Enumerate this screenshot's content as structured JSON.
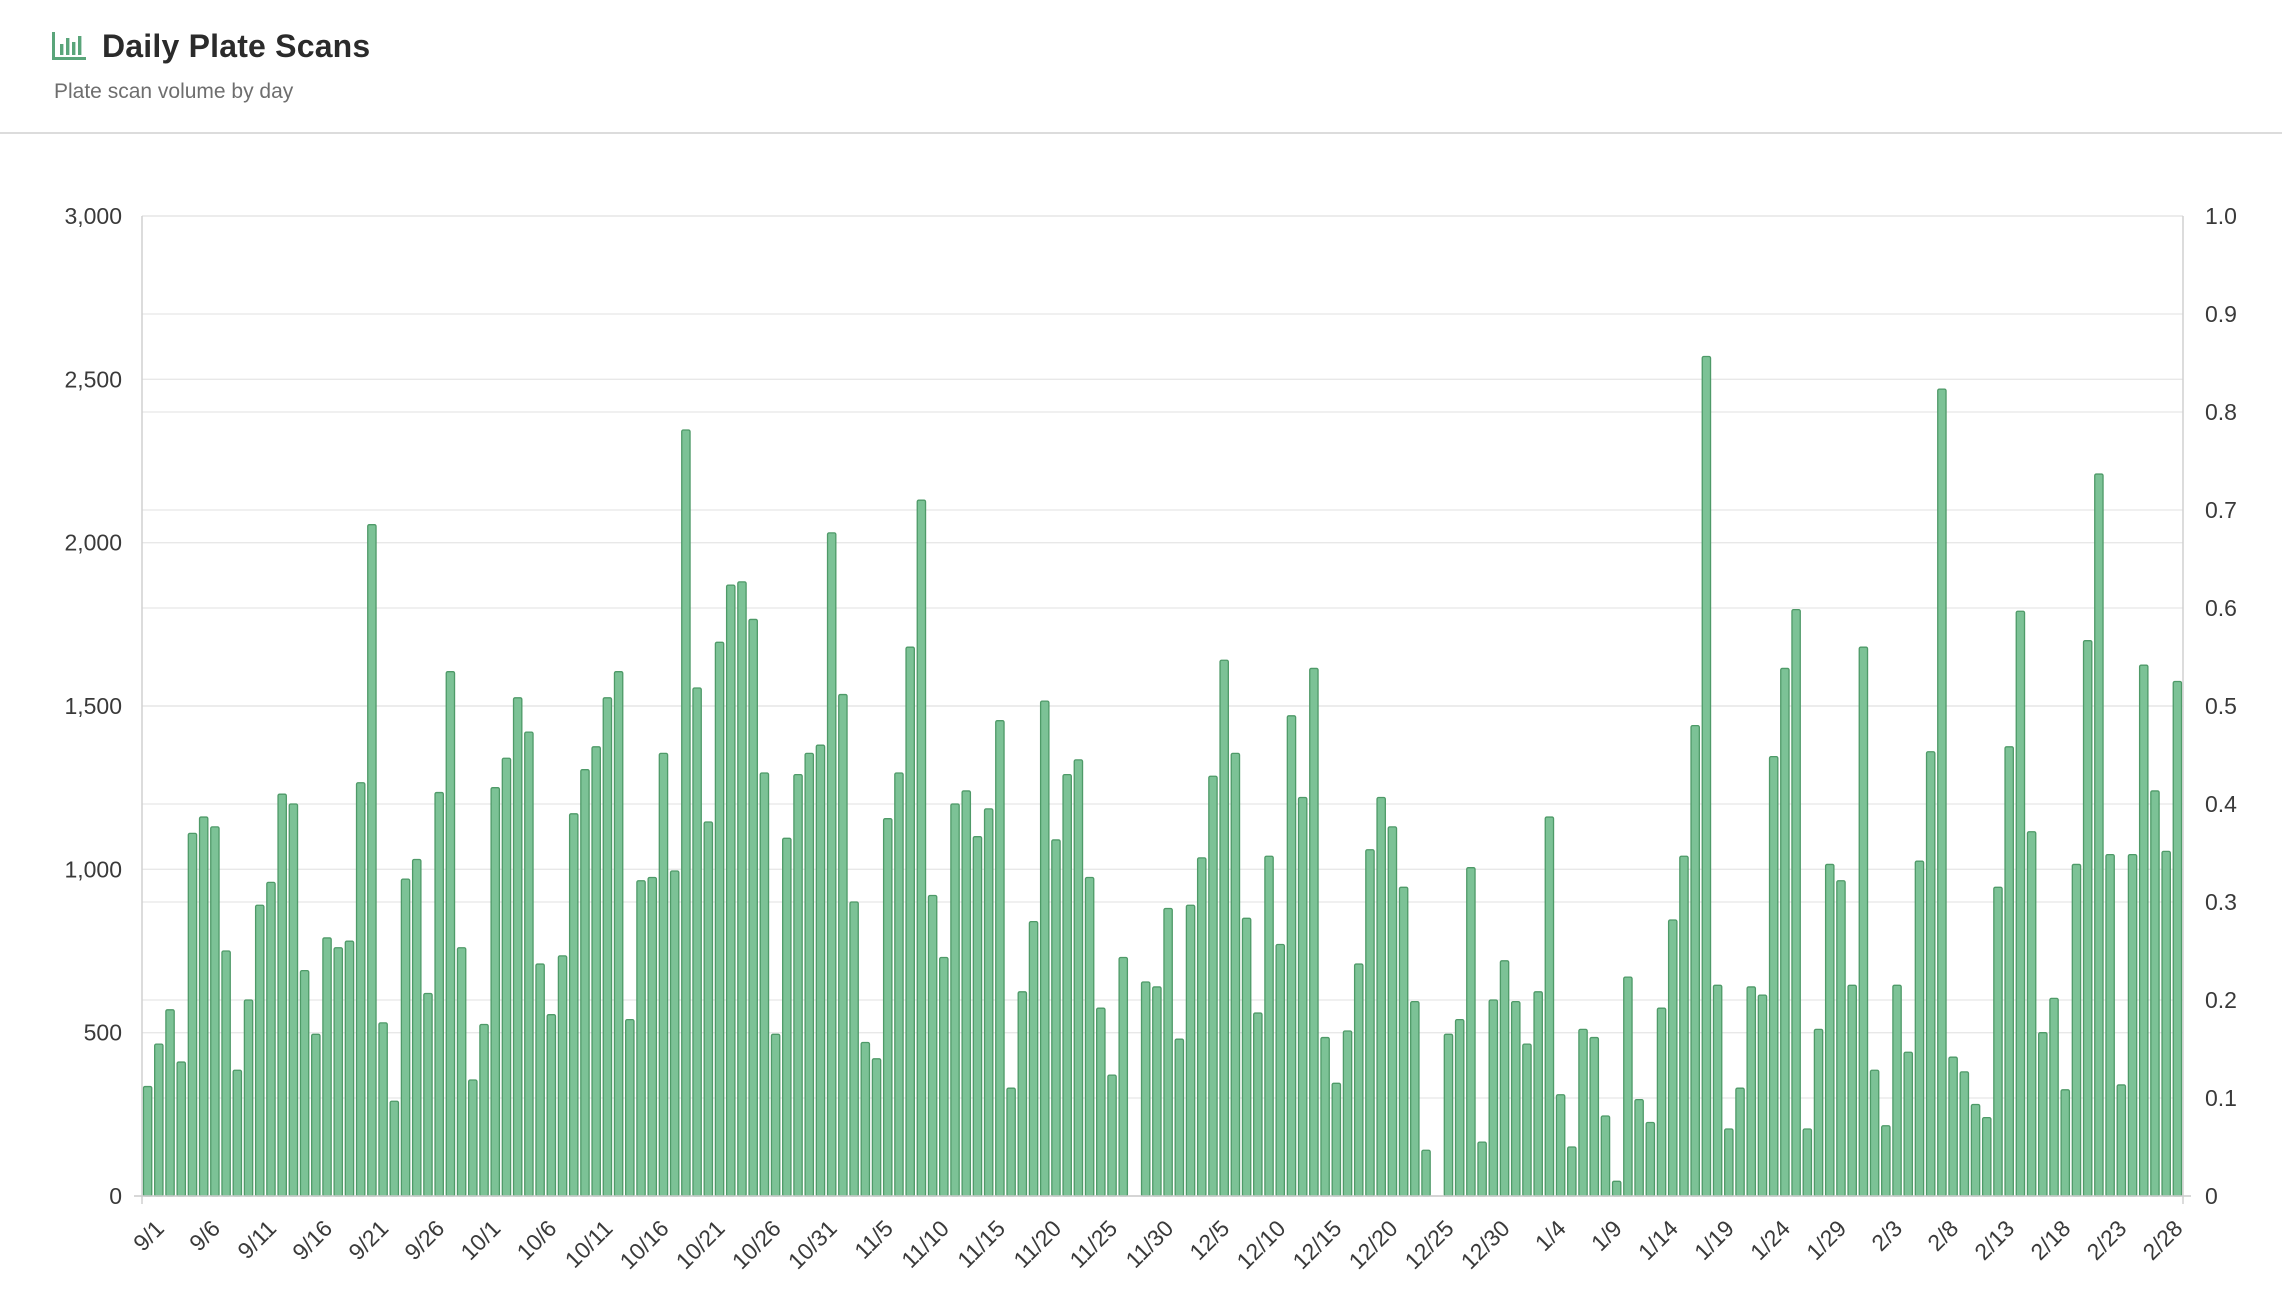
{
  "header": {
    "title": "Daily Plate Scans",
    "subtitle": "Plate scan volume by day",
    "icon": "bar-chart-icon"
  },
  "colors": {
    "bar_fill": "#7cc296",
    "bar_stroke": "#4e9a68",
    "icon": "#5aa57a",
    "grid": "#e0e0e0"
  },
  "chart_data": {
    "type": "bar",
    "grid": true,
    "legend": "none",
    "ylim": [
      0,
      3000
    ],
    "y_ticks": [
      "0",
      "500",
      "1,000",
      "1,500",
      "2,000",
      "2,500",
      "3,000"
    ],
    "y_tick_values": [
      0,
      500,
      1000,
      1500,
      2000,
      2500,
      3000
    ],
    "y2lim": [
      0,
      1
    ],
    "y2_ticks": [
      "0",
      "0.1",
      "0.2",
      "0.3",
      "0.4",
      "0.5",
      "0.6",
      "0.7",
      "0.8",
      "0.9",
      "1.0"
    ],
    "x_tick_labels": [
      "9/1",
      "9/6",
      "9/11",
      "9/16",
      "9/21",
      "9/26",
      "10/1",
      "10/6",
      "10/11",
      "10/16",
      "10/21",
      "10/26",
      "10/31",
      "11/5",
      "11/10",
      "11/15",
      "11/20",
      "11/25",
      "11/30",
      "12/5",
      "12/10",
      "12/15",
      "12/20",
      "12/25",
      "12/30",
      "1/4",
      "1/9",
      "1/14",
      "1/19",
      "1/24",
      "1/29",
      "2/3",
      "2/8",
      "2/13",
      "2/18",
      "2/23",
      "2/28"
    ],
    "values": [
      335,
      465,
      570,
      410,
      1110,
      1160,
      1130,
      750,
      385,
      600,
      890,
      960,
      1230,
      1200,
      690,
      495,
      790,
      760,
      780,
      1265,
      2055,
      530,
      290,
      970,
      1030,
      620,
      1235,
      1605,
      760,
      355,
      525,
      1250,
      1340,
      1525,
      1420,
      710,
      555,
      735,
      1170,
      1305,
      1375,
      1525,
      1605,
      540,
      965,
      975,
      1355,
      995,
      2345,
      1555,
      1145,
      1695,
      1870,
      1880,
      1765,
      1295,
      495,
      1095,
      1290,
      1355,
      1380,
      2030,
      1535,
      900,
      470,
      420,
      1155,
      1295,
      1680,
      2130,
      920,
      730,
      1200,
      1240,
      1100,
      1185,
      1455,
      330,
      625,
      840,
      1515,
      1090,
      1290,
      1335,
      975,
      575,
      370,
      730,
      0,
      655,
      640,
      880,
      480,
      890,
      1035,
      1285,
      1640,
      1355,
      850,
      560,
      1040,
      770,
      1470,
      1220,
      1615,
      485,
      345,
      505,
      710,
      1060,
      1220,
      1130,
      945,
      595,
      140,
      0,
      495,
      540,
      1005,
      165,
      600,
      720,
      595,
      465,
      625,
      1160,
      310,
      150,
      510,
      485,
      245,
      45,
      670,
      295,
      225,
      575,
      845,
      1040,
      1440,
      2570,
      645,
      205,
      330,
      640,
      615,
      1345,
      1615,
      1795,
      205,
      510,
      1015,
      965,
      645,
      1680,
      385,
      215,
      645,
      440,
      1025,
      1360,
      2470,
      425,
      380,
      280,
      240,
      945,
      1375,
      1790,
      1115,
      500,
      605,
      325,
      1015,
      1700,
      2210,
      1045,
      340,
      1045,
      1625,
      1240,
      1055,
      1575
    ]
  }
}
